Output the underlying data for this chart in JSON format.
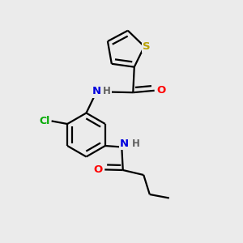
{
  "background_color": "#ebebeb",
  "atom_colors": {
    "S": "#b8a000",
    "O": "#ff0000",
    "N": "#0000dd",
    "Cl": "#00aa00",
    "C": "#000000",
    "H": "#606060"
  },
  "bond_color": "#000000",
  "bond_width": 1.6
}
